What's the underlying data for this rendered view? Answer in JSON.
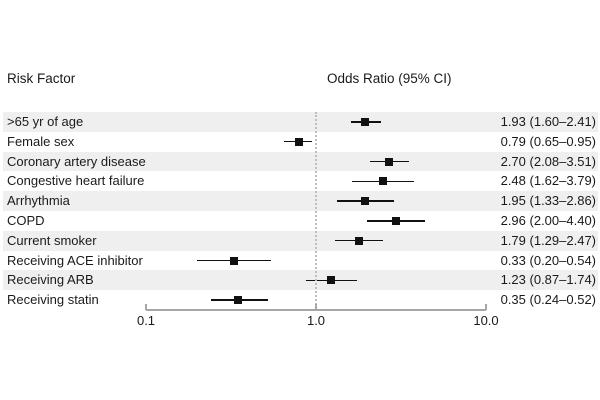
{
  "header": {
    "left_title": "Risk Factor",
    "right_title": "Odds Ratio (95% CI)"
  },
  "chart_data": {
    "type": "forest",
    "title": "Odds Ratio (95% CI)",
    "x_scale": "log",
    "xlim": [
      0.1,
      10.0
    ],
    "reference_line": 1.0,
    "axis_ticks": [
      {
        "value": 0.1,
        "label": "0.1"
      },
      {
        "value": 1.0,
        "label": "1.0"
      },
      {
        "value": 10.0,
        "label": "10.0"
      }
    ],
    "rows": [
      {
        "label": ">65 yr of age",
        "or": 1.93,
        "ci_low": 1.6,
        "ci_high": 2.41,
        "display": "1.93 (1.60–2.41)"
      },
      {
        "label": "Female sex",
        "or": 0.79,
        "ci_low": 0.65,
        "ci_high": 0.95,
        "display": "0.79 (0.65–0.95)"
      },
      {
        "label": "Coronary artery disease",
        "or": 2.7,
        "ci_low": 2.08,
        "ci_high": 3.51,
        "display": "2.70 (2.08–3.51)"
      },
      {
        "label": "Congestive heart failure",
        "or": 2.48,
        "ci_low": 1.62,
        "ci_high": 3.79,
        "display": "2.48 (1.62–3.79)"
      },
      {
        "label": "Arrhythmia",
        "or": 1.95,
        "ci_low": 1.33,
        "ci_high": 2.86,
        "display": "1.95 (1.33–2.86)"
      },
      {
        "label": "COPD",
        "or": 2.96,
        "ci_low": 2.0,
        "ci_high": 4.4,
        "display": "2.96 (2.00–4.40)"
      },
      {
        "label": "Current smoker",
        "or": 1.79,
        "ci_low": 1.29,
        "ci_high": 2.47,
        "display": "1.79 (1.29–2.47)"
      },
      {
        "label": "Receiving ACE inhibitor",
        "or": 0.33,
        "ci_low": 0.2,
        "ci_high": 0.54,
        "display": "0.33 (0.20–0.54)"
      },
      {
        "label": "Receiving ARB",
        "or": 1.23,
        "ci_low": 0.87,
        "ci_high": 1.74,
        "display": "1.23 (0.87–1.74)"
      },
      {
        "label": "Receiving statin",
        "or": 0.35,
        "ci_low": 0.24,
        "ci_high": 0.52,
        "display": "0.35 (0.24–0.52)"
      }
    ],
    "legend_position": "none",
    "grid": false
  },
  "colors": {
    "band": "#efefef",
    "marker": "#111111",
    "ci_line": "#111111",
    "axis": "#a6a6a6",
    "reference_line": "#bdbdbd",
    "text": "#1a1a1a",
    "background": "#ffffff"
  }
}
